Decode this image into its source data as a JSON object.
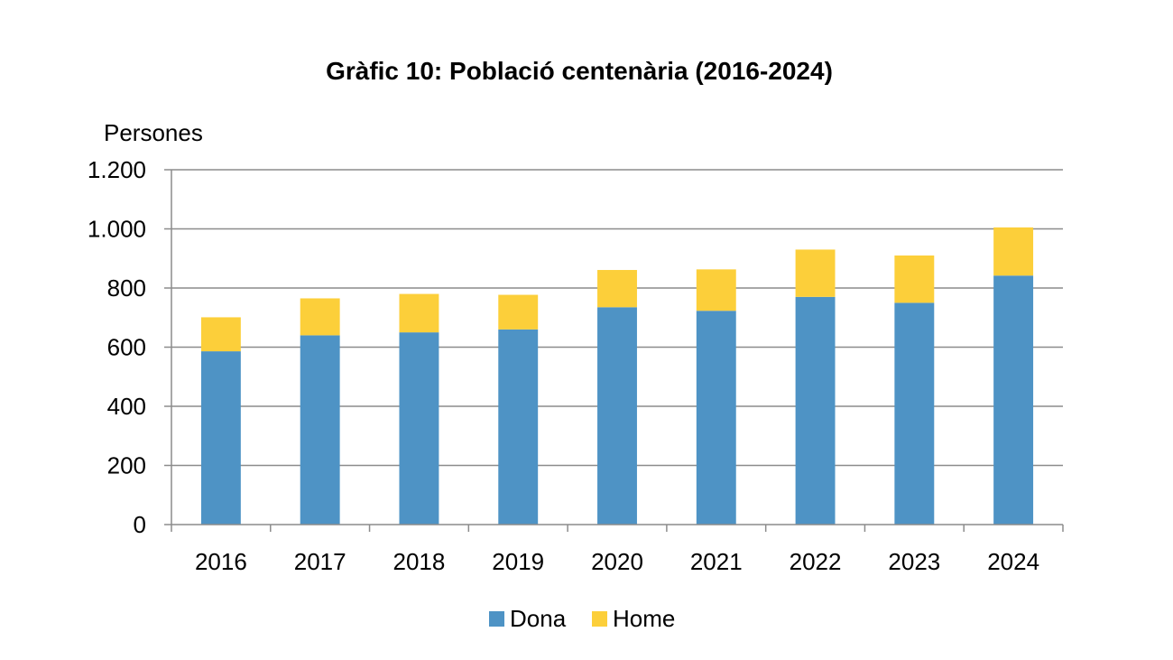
{
  "chart_data": {
    "type": "bar",
    "stacked": true,
    "title": "Gràfic 10: Població centenària (2016-2024)",
    "ylabel": "Persones",
    "xlabel": "",
    "categories": [
      "2016",
      "2017",
      "2018",
      "2019",
      "2020",
      "2021",
      "2022",
      "2023",
      "2024"
    ],
    "series": [
      {
        "name": "Dona",
        "color": "#4E93C5",
        "values": [
          586,
          640,
          650,
          660,
          735,
          723,
          770,
          750,
          842
        ]
      },
      {
        "name": "Home",
        "color": "#FCCF3A",
        "values": [
          115,
          125,
          130,
          117,
          126,
          140,
          160,
          160,
          163
        ]
      }
    ],
    "ylim": [
      0,
      1200
    ],
    "yticks": [
      0,
      200,
      400,
      600,
      800,
      1000,
      1200
    ],
    "ytick_labels": [
      "0",
      "200",
      "400",
      "600",
      "800",
      "1.000",
      "1.200"
    ],
    "grid": true,
    "legend_position": "bottom"
  }
}
